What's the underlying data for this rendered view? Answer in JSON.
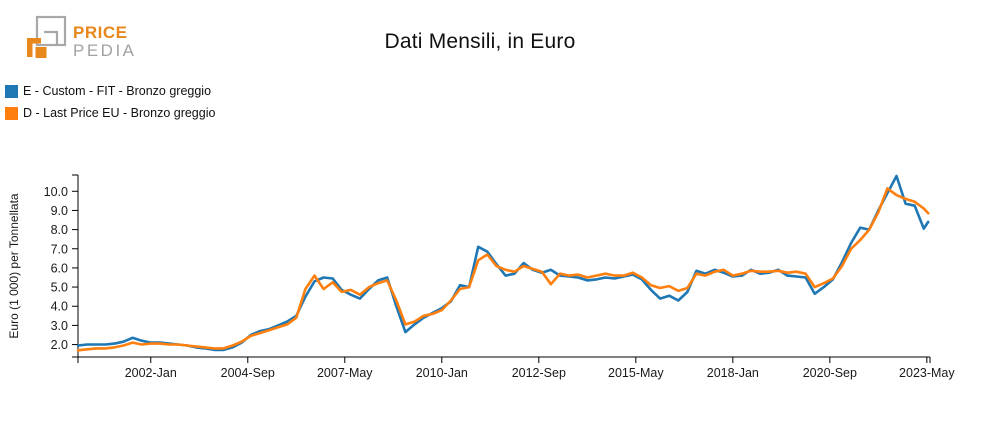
{
  "logo": {
    "brand_top": "PRICE",
    "brand_bottom": "PEDIA",
    "orange": "#e8871c",
    "gray": "#a8a8a8"
  },
  "title": "Dati Mensili, in Euro",
  "legend": [
    {
      "label": "E - Custom - FIT - Bronzo greggio",
      "color": "#1f77b4"
    },
    {
      "label": "D - Last Price EU - Bronzo greggio",
      "color": "#ff7f0e"
    }
  ],
  "chart_data": {
    "type": "line",
    "title": "Dati Mensili, in Euro",
    "xlabel": "",
    "ylabel": "Euro (1 000) per Tonnellata",
    "grid": false,
    "legend_position": "top-left",
    "axis_color": "#000000",
    "tick_label_color": "#1a1a1a",
    "xlim": [
      2000.0,
      2023.42
    ],
    "ylim": [
      1.35,
      10.85
    ],
    "y_ticks": [
      {
        "v": 2,
        "label": "2.0"
      },
      {
        "v": 3,
        "label": "3.0"
      },
      {
        "v": 4,
        "label": "4.0"
      },
      {
        "v": 5,
        "label": "5.0"
      },
      {
        "v": 6,
        "label": "6.0"
      },
      {
        "v": 7,
        "label": "7.0"
      },
      {
        "v": 8,
        "label": "8.0"
      },
      {
        "v": 9,
        "label": "9.0"
      },
      {
        "v": 10,
        "label": "10.0"
      }
    ],
    "x_ticks": [
      {
        "v": 2002.0,
        "label": "2002-Jan"
      },
      {
        "v": 2004.6667,
        "label": "2004-Sep"
      },
      {
        "v": 2007.3333,
        "label": "2007-May"
      },
      {
        "v": 2010.0,
        "label": "2010-Jan"
      },
      {
        "v": 2012.6667,
        "label": "2012-Sep"
      },
      {
        "v": 2015.3333,
        "label": "2015-May"
      },
      {
        "v": 2018.0,
        "label": "2018-Jan"
      },
      {
        "v": 2020.6667,
        "label": "2020-Sep"
      },
      {
        "v": 2023.3333,
        "label": "2023-May"
      }
    ],
    "x": [
      2000.0,
      2000.25,
      2000.5,
      2000.75,
      2001.0,
      2001.25,
      2001.5,
      2001.75,
      2002.0,
      2002.25,
      2002.5,
      2002.75,
      2003.0,
      2003.25,
      2003.5,
      2003.75,
      2004.0,
      2004.25,
      2004.5,
      2004.75,
      2005.0,
      2005.25,
      2005.5,
      2005.75,
      2006.0,
      2006.25,
      2006.5,
      2006.75,
      2007.0,
      2007.25,
      2007.5,
      2007.75,
      2008.0,
      2008.25,
      2008.5,
      2008.75,
      2009.0,
      2009.25,
      2009.5,
      2009.75,
      2010.0,
      2010.25,
      2010.5,
      2010.75,
      2011.0,
      2011.25,
      2011.5,
      2011.75,
      2012.0,
      2012.25,
      2012.5,
      2012.75,
      2013.0,
      2013.25,
      2013.5,
      2013.75,
      2014.0,
      2014.25,
      2014.5,
      2014.75,
      2015.0,
      2015.25,
      2015.5,
      2015.75,
      2016.0,
      2016.25,
      2016.5,
      2016.75,
      2017.0,
      2017.25,
      2017.5,
      2017.75,
      2018.0,
      2018.25,
      2018.5,
      2018.75,
      2019.0,
      2019.25,
      2019.5,
      2019.75,
      2020.0,
      2020.25,
      2020.5,
      2020.75,
      2021.0,
      2021.25,
      2021.5,
      2021.75,
      2022.0,
      2022.25,
      2022.5,
      2022.75,
      2023.0,
      2023.25,
      2023.37
    ],
    "series": [
      {
        "name": "E - Custom - FIT - Bronzo greggio",
        "color": "#1f77b4",
        "values": [
          1.95,
          2.0,
          2.0,
          2.0,
          2.05,
          2.15,
          2.35,
          2.2,
          2.1,
          2.1,
          2.05,
          2.0,
          1.95,
          1.85,
          1.8,
          1.72,
          1.72,
          1.85,
          2.1,
          2.5,
          2.7,
          2.8,
          3.0,
          3.2,
          3.5,
          4.5,
          5.3,
          5.5,
          5.45,
          4.85,
          4.6,
          4.4,
          4.9,
          5.35,
          5.5,
          4.0,
          2.65,
          3.05,
          3.4,
          3.65,
          3.9,
          4.25,
          5.1,
          5.0,
          7.1,
          6.85,
          6.2,
          5.6,
          5.7,
          6.25,
          5.9,
          5.75,
          5.9,
          5.6,
          5.55,
          5.5,
          5.35,
          5.4,
          5.5,
          5.45,
          5.55,
          5.65,
          5.4,
          4.85,
          4.4,
          4.55,
          4.3,
          4.75,
          5.85,
          5.7,
          5.9,
          5.75,
          5.55,
          5.6,
          5.9,
          5.7,
          5.75,
          5.9,
          5.6,
          5.55,
          5.5,
          4.65,
          5.0,
          5.4,
          6.3,
          7.3,
          8.1,
          8.0,
          9.0,
          9.9,
          10.8,
          9.35,
          9.25,
          8.05,
          8.4
        ]
      },
      {
        "name": "D - Last Price EU - Bronzo greggio",
        "color": "#ff7f0e",
        "values": [
          1.7,
          1.75,
          1.8,
          1.8,
          1.85,
          1.95,
          2.1,
          2.0,
          2.05,
          2.05,
          2.0,
          2.0,
          1.95,
          1.9,
          1.85,
          1.8,
          1.8,
          1.95,
          2.15,
          2.45,
          2.6,
          2.75,
          2.9,
          3.05,
          3.4,
          4.9,
          5.6,
          4.9,
          5.25,
          4.75,
          4.85,
          4.6,
          5.0,
          5.2,
          5.35,
          4.3,
          3.05,
          3.2,
          3.5,
          3.6,
          3.8,
          4.3,
          4.9,
          5.0,
          6.4,
          6.7,
          6.1,
          5.9,
          5.8,
          6.1,
          5.95,
          5.8,
          5.15,
          5.7,
          5.6,
          5.65,
          5.5,
          5.6,
          5.7,
          5.6,
          5.6,
          5.75,
          5.5,
          5.1,
          4.95,
          5.05,
          4.8,
          4.95,
          5.7,
          5.6,
          5.8,
          5.9,
          5.6,
          5.7,
          5.85,
          5.8,
          5.8,
          5.85,
          5.75,
          5.8,
          5.7,
          5.0,
          5.2,
          5.45,
          6.1,
          7.0,
          7.45,
          8.0,
          8.9,
          10.15,
          9.8,
          9.6,
          9.45,
          9.1,
          8.85
        ]
      }
    ]
  }
}
